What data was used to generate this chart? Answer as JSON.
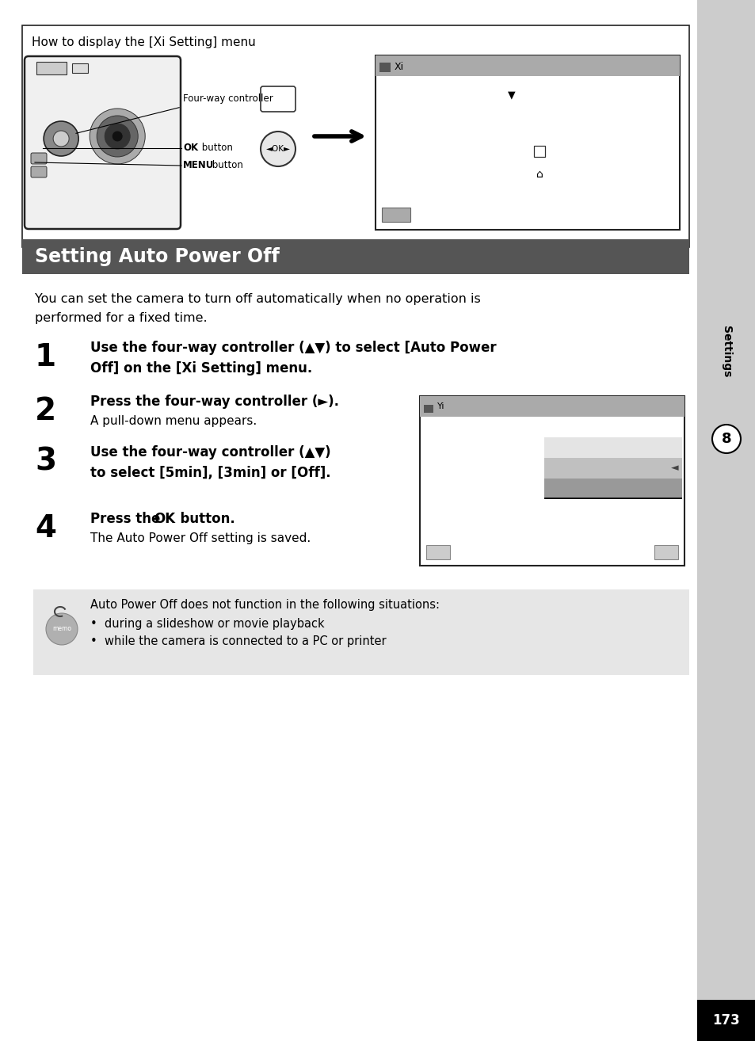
{
  "page_bg": "#ffffff",
  "sidebar_bg": "#cccccc",
  "page_number": "173",
  "page_number_bg": "#000000",
  "chapter_label": "Settings",
  "chapter_number": "8",
  "section_title": "Setting Auto Power Off",
  "section_title_bg": "#555555",
  "section_title_color": "#ffffff",
  "intro_line1": "You can set the camera to turn off automatically when no operation is",
  "intro_line2": "performed for a fixed time.",
  "step1_bold1": "Use the four-way controller (▲▼) to select [Auto Power",
  "step1_bold2": "Off] on the [Xi Setting] menu.",
  "step2_bold": "Press the four-way controller (►).",
  "step2_norm": "A pull-down menu appears.",
  "step3_bold1": "Use the four-way controller (▲▼)",
  "step3_bold2": "to select [5min], [3min] or [Off].",
  "step4_norm": "The Auto Power Off setting is saved.",
  "memo_line1": "Auto Power Off does not function in the following situations:",
  "memo_line2": "•  during a slideshow or movie playback",
  "memo_line3": "•  while the camera is connected to a PC or printer",
  "box_title": "How to display the [Xi Setting] menu"
}
